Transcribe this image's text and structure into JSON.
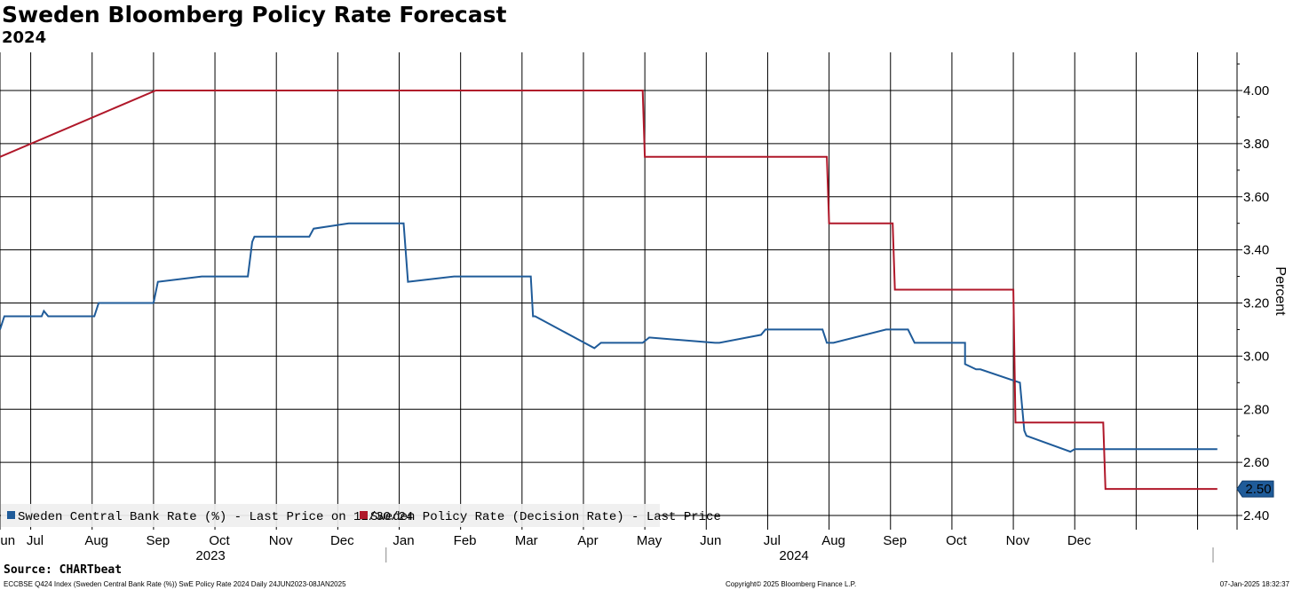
{
  "header": {
    "title": "Sweden Bloomberg Policy Rate Forecast",
    "subtitle": "2024"
  },
  "footer": {
    "source": "Source: CHARTbeat",
    "left": "ECCBSE Q424 Index (Sweden Central Bank Rate (%)) SwE Policy Rate 2024  Daily 24JUN2023-08JAN2025",
    "center": "Copyright© 2025 Bloomberg Finance L.P.",
    "right": "07-Jan-2025 18:32:37"
  },
  "chart_data": {
    "type": "line",
    "title": "Sweden Bloomberg Policy Rate Forecast",
    "subtitle": "2024",
    "ylabel": "Percent",
    "ylim": [
      2.37,
      4.14
    ],
    "yticks": [
      2.4,
      2.6,
      2.8,
      3.0,
      3.2,
      3.4,
      3.6,
      3.8,
      4.0
    ],
    "ytick_labels": [
      "2.40",
      "2.60",
      "2.80",
      "3.00",
      "3.20",
      "3.40",
      "3.60",
      "3.80",
      "4.00"
    ],
    "xlim": [
      "2023-06-24",
      "2025-01-08"
    ],
    "xticks": [
      {
        "label": "Jun",
        "date": "2023-06-26"
      },
      {
        "label": "Jul",
        "date": "2023-07-10"
      },
      {
        "label": "Aug",
        "date": "2023-08-07"
      },
      {
        "label": "Sep",
        "date": "2023-09-04"
      },
      {
        "label": "Oct",
        "date": "2023-10-02"
      },
      {
        "label": "Nov",
        "date": "2023-10-30"
      },
      {
        "label": "Dec",
        "date": "2023-11-27"
      },
      {
        "label": "Jan",
        "date": "2023-12-25"
      },
      {
        "label": "Feb",
        "date": "2024-01-22"
      },
      {
        "label": "Mar",
        "date": "2024-02-19"
      },
      {
        "label": "Apr",
        "date": "2024-03-18"
      },
      {
        "label": "May",
        "date": "2024-04-15"
      },
      {
        "label": "Jun",
        "date": "2024-05-13"
      },
      {
        "label": "Jul",
        "date": "2024-06-10"
      },
      {
        "label": "Aug",
        "date": "2024-07-08"
      },
      {
        "label": "Sep",
        "date": "2024-08-05"
      },
      {
        "label": "Oct",
        "date": "2024-09-02"
      },
      {
        "label": "Nov",
        "date": "2024-09-30"
      },
      {
        "label": "Dec",
        "date": "2024-10-28"
      }
    ],
    "year_labels": [
      {
        "label": "2023",
        "date": "2023-09-28"
      },
      {
        "label": "2024",
        "date": "2024-06-20"
      }
    ],
    "year_separator": "2024-01-01",
    "vertical_gridlines": [
      "2023-06-24",
      "2023-07-08",
      "2023-08-05",
      "2023-09-02",
      "2023-09-30",
      "2023-10-28",
      "2023-11-25",
      "2023-12-23",
      "2024-01-20",
      "2024-02-17",
      "2024-03-16",
      "2024-04-13",
      "2024-05-11",
      "2024-06-08",
      "2024-07-06",
      "2024-08-03",
      "2024-08-31",
      "2024-09-28",
      "2024-10-26",
      "2024-11-23",
      "2024-12-21"
    ],
    "grid": true,
    "legend_position": "bottom-left",
    "last_value_label": "2.50",
    "series": [
      {
        "name": "Sweden Central Bank Rate (%) - Last Price on 12/30/24",
        "color": "#1f5b99",
        "x": [
          "2023-06-24",
          "2023-06-26",
          "2023-07-13",
          "2023-07-14",
          "2023-07-16",
          "2023-08-06",
          "2023-08-08",
          "2023-09-02",
          "2023-09-04",
          "2023-09-24",
          "2023-09-26",
          "2023-10-15",
          "2023-10-17",
          "2023-10-18",
          "2023-10-20",
          "2023-11-12",
          "2023-11-14",
          "2023-11-30",
          "2023-12-02",
          "2023-12-04",
          "2023-12-25",
          "2023-12-27",
          "2024-01-17",
          "2024-01-19",
          "2024-01-20",
          "2024-02-21",
          "2024-02-22",
          "2024-02-23",
          "2024-03-21",
          "2024-03-24",
          "2024-04-12",
          "2024-04-15",
          "2024-05-15",
          "2024-05-17",
          "2024-06-05",
          "2024-06-07",
          "2024-06-07",
          "2024-07-03",
          "2024-07-05",
          "2024-07-08",
          "2024-07-08",
          "2024-08-01",
          "2024-08-03",
          "2024-08-11",
          "2024-08-14",
          "2024-08-14",
          "2024-08-16",
          "2024-09-06",
          "2024-09-06",
          "2024-09-11",
          "2024-09-11",
          "2024-09-13",
          "2024-10-01",
          "2024-10-01",
          "2024-10-03",
          "2024-10-04",
          "2024-10-04",
          "2024-10-24",
          "2024-10-26",
          "2024-12-30"
        ],
        "y": [
          3.1,
          3.15,
          3.15,
          3.17,
          3.15,
          3.15,
          3.2,
          3.2,
          3.28,
          3.3,
          3.3,
          3.3,
          3.43,
          3.45,
          3.45,
          3.45,
          3.48,
          3.5,
          3.5,
          3.5,
          3.5,
          3.28,
          3.3,
          3.3,
          3.3,
          3.3,
          3.15,
          3.15,
          3.03,
          3.05,
          3.05,
          3.07,
          3.05,
          3.05,
          3.08,
          3.1,
          3.1,
          3.1,
          3.05,
          3.05,
          3.05,
          3.1,
          3.1,
          3.1,
          3.05,
          3.05,
          3.05,
          3.05,
          2.97,
          2.95,
          2.95,
          2.95,
          2.9,
          2.9,
          2.72,
          2.7,
          2.7,
          2.64,
          2.65,
          2.65
        ]
      },
      {
        "name": "Sweden Policy Rate (Decision Rate) - Last Price",
        "color": "#b0182a",
        "x": [
          "2023-06-24",
          "2023-09-03",
          "2024-04-12",
          "2024-04-13",
          "2024-07-05",
          "2024-07-06",
          "2024-08-04",
          "2024-08-05",
          "2024-09-28",
          "2024-09-29",
          "2024-11-08",
          "2024-11-09",
          "2024-12-30"
        ],
        "y": [
          3.75,
          4.0,
          4.0,
          3.75,
          3.75,
          3.5,
          3.5,
          3.25,
          3.25,
          2.75,
          2.75,
          2.5,
          2.5
        ]
      }
    ]
  }
}
